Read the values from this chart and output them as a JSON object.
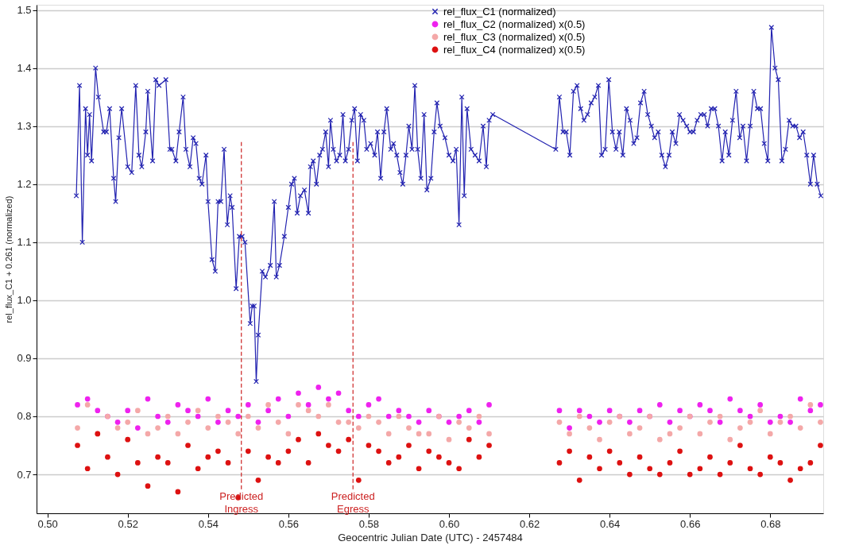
{
  "chart_data": {
    "type": "line",
    "xlabel": "Geocentric Julian Date (UTC) - 2457484",
    "ylabel": "rel_flux_C1 + 0.261 (normalized)",
    "xlim": [
      0.4973,
      0.6932
    ],
    "ylim": [
      0.633,
      1.509
    ],
    "xticks": [
      {
        "value": 0.5,
        "label": "0.50"
      },
      {
        "value": 0.52,
        "label": "0.52"
      },
      {
        "value": 0.54,
        "label": "0.54"
      },
      {
        "value": 0.56,
        "label": "0.56"
      },
      {
        "value": 0.58,
        "label": "0.58"
      },
      {
        "value": 0.6,
        "label": "0.60"
      },
      {
        "value": 0.62,
        "label": "0.62"
      },
      {
        "value": 0.64,
        "label": "0.64"
      },
      {
        "value": 0.66,
        "label": "0.66"
      },
      {
        "value": 0.68,
        "label": "0.68"
      }
    ],
    "yticks": [
      {
        "value": 0.7,
        "label": "0.7"
      },
      {
        "value": 0.8,
        "label": "0.8"
      },
      {
        "value": 0.9,
        "label": "0.9"
      },
      {
        "value": 1.0,
        "label": "1.0"
      },
      {
        "value": 1.1,
        "label": "1.1"
      },
      {
        "value": 1.2,
        "label": "1.2"
      },
      {
        "value": 1.3,
        "label": "1.3"
      },
      {
        "value": 1.4,
        "label": "1.4"
      },
      {
        "value": 1.5,
        "label": "1.5"
      }
    ],
    "grid": "y",
    "legend": "top right",
    "ref_lines": [
      {
        "axis": "x",
        "value": 0.5483,
        "label": "Predicted Ingress",
        "color": "#cc2222",
        "line_style": "dashed"
      },
      {
        "axis": "x",
        "value": 0.5761,
        "label": "Predicted Egress",
        "color": "#cc2222",
        "line_style": "dashed"
      }
    ],
    "series": [
      {
        "name": "rel_flux_C1 (normalized)",
        "marker": "cross",
        "color": "#2222b0",
        "x": [
          0.5072,
          0.508,
          0.5087,
          0.5095,
          0.51,
          0.5105,
          0.511,
          0.512,
          0.5127,
          0.514,
          0.5147,
          0.5155,
          0.5165,
          0.517,
          0.5178,
          0.5185,
          0.52,
          0.521,
          0.522,
          0.5228,
          0.5235,
          0.5245,
          0.525,
          0.5262,
          0.527,
          0.5278,
          0.5295,
          0.5305,
          0.531,
          0.532,
          0.5328,
          0.5338,
          0.5345,
          0.5355,
          0.5363,
          0.537,
          0.5378,
          0.5385,
          0.5395,
          0.54,
          0.541,
          0.5418,
          0.5425,
          0.5432,
          0.544,
          0.5448,
          0.5455,
          0.546,
          0.547,
          0.5478,
          0.5485,
          0.5492,
          0.5505,
          0.551,
          0.5515,
          0.552,
          0.5525,
          0.5535,
          0.5543,
          0.5555,
          0.5565,
          0.557,
          0.5578,
          0.559,
          0.56,
          0.5608,
          0.5615,
          0.5622,
          0.563,
          0.564,
          0.565,
          0.5655,
          0.5662,
          0.567,
          0.5678,
          0.5685,
          0.5693,
          0.57,
          0.5705,
          0.5712,
          0.572,
          0.5728,
          0.5736,
          0.5742,
          0.575,
          0.5758,
          0.5765,
          0.5772,
          0.578,
          0.5788,
          0.5795,
          0.5805,
          0.5815,
          0.5822,
          0.583,
          0.5838,
          0.5845,
          0.5855,
          0.5862,
          0.587,
          0.5878,
          0.5885,
          0.5893,
          0.59,
          0.5908,
          0.5915,
          0.5922,
          0.593,
          0.5938,
          0.5945,
          0.5955,
          0.5963,
          0.597,
          0.5978,
          0.599,
          0.6,
          0.601,
          0.6018,
          0.6025,
          0.6032,
          0.6038,
          0.6045,
          0.6055,
          0.6065,
          0.6075,
          0.6085,
          0.6093,
          0.61,
          0.6109,
          0.6266,
          0.6275,
          0.6284,
          0.6292,
          0.6301,
          0.631,
          0.6319,
          0.6328,
          0.6336,
          0.6345,
          0.6354,
          0.6363,
          0.6372,
          0.638,
          0.6389,
          0.6398,
          0.6407,
          0.6416,
          0.6424,
          0.6433,
          0.6442,
          0.6451,
          0.646,
          0.6468,
          0.6477,
          0.6486,
          0.6495,
          0.6504,
          0.6512,
          0.6521,
          0.653,
          0.6539,
          0.6548,
          0.6556,
          0.6565,
          0.6574,
          0.6583,
          0.6592,
          0.66,
          0.6609,
          0.6618,
          0.6627,
          0.6636,
          0.6644,
          0.6653,
          0.6662,
          0.6671,
          0.668,
          0.6688,
          0.6697,
          0.6706,
          0.6715,
          0.6724,
          0.6732,
          0.6741,
          0.675,
          0.6759,
          0.6768,
          0.6776,
          0.6785,
          0.6794,
          0.6803,
          0.6812,
          0.682,
          0.6829,
          0.6838,
          0.6847,
          0.6856,
          0.6864,
          0.6873,
          0.6882,
          0.6891,
          0.69,
          0.6908,
          0.6917,
          0.6926
        ],
        "values": [
          1.18,
          1.37,
          1.1,
          1.33,
          1.25,
          1.32,
          1.24,
          1.4,
          1.35,
          1.29,
          1.29,
          1.33,
          1.21,
          1.17,
          1.28,
          1.33,
          1.23,
          1.22,
          1.37,
          1.25,
          1.23,
          1.29,
          1.36,
          1.24,
          1.38,
          1.37,
          1.38,
          1.26,
          1.26,
          1.24,
          1.29,
          1.35,
          1.26,
          1.23,
          1.28,
          1.27,
          1.21,
          1.2,
          1.25,
          1.17,
          1.07,
          1.05,
          1.17,
          1.17,
          1.26,
          1.13,
          1.18,
          1.16,
          1.02,
          1.11,
          1.11,
          1.1,
          0.96,
          0.99,
          0.99,
          0.86,
          0.94,
          1.05,
          1.04,
          1.06,
          1.17,
          1.04,
          1.06,
          1.11,
          1.16,
          1.2,
          1.21,
          1.15,
          1.18,
          1.19,
          1.15,
          1.23,
          1.24,
          1.2,
          1.25,
          1.26,
          1.29,
          1.23,
          1.31,
          1.26,
          1.24,
          1.25,
          1.32,
          1.24,
          1.26,
          1.31,
          1.33,
          1.24,
          1.32,
          1.31,
          1.26,
          1.27,
          1.25,
          1.29,
          1.21,
          1.29,
          1.33,
          1.26,
          1.27,
          1.25,
          1.22,
          1.2,
          1.25,
          1.3,
          1.26,
          1.37,
          1.26,
          1.21,
          1.32,
          1.19,
          1.21,
          1.29,
          1.34,
          1.3,
          1.28,
          1.25,
          1.24,
          1.26,
          1.13,
          1.35,
          1.18,
          1.33,
          1.26,
          1.25,
          1.24,
          1.3,
          1.23,
          1.31,
          1.32,
          1.26,
          1.35,
          1.29,
          1.29,
          1.25,
          1.36,
          1.37,
          1.33,
          1.31,
          1.32,
          1.34,
          1.35,
          1.37,
          1.25,
          1.26,
          1.38,
          1.29,
          1.26,
          1.29,
          1.25,
          1.33,
          1.31,
          1.27,
          1.28,
          1.34,
          1.36,
          1.32,
          1.3,
          1.28,
          1.29,
          1.25,
          1.23,
          1.25,
          1.29,
          1.27,
          1.32,
          1.31,
          1.3,
          1.29,
          1.29,
          1.31,
          1.32,
          1.32,
          1.3,
          1.33,
          1.33,
          1.3,
          1.24,
          1.29,
          1.25,
          1.31,
          1.36,
          1.28,
          1.3,
          1.24,
          1.3,
          1.36,
          1.33,
          1.33,
          1.27,
          1.24,
          1.47,
          1.4,
          1.38,
          1.24,
          1.26,
          1.31,
          1.3,
          1.3,
          1.28,
          1.29,
          1.25,
          1.2,
          1.25,
          1.2,
          1.18
        ]
      },
      {
        "name": "rel_flux_C2 (normalized) x(0.5)",
        "type": "scatter",
        "marker": "circle",
        "color": "#ee22ee",
        "x": [
          0.5075,
          0.51,
          0.5125,
          0.515,
          0.5175,
          0.52,
          0.5225,
          0.525,
          0.5275,
          0.53,
          0.5325,
          0.535,
          0.5375,
          0.54,
          0.5425,
          0.545,
          0.5475,
          0.55,
          0.5525,
          0.555,
          0.5575,
          0.56,
          0.5625,
          0.565,
          0.5675,
          0.57,
          0.5725,
          0.575,
          0.5775,
          0.58,
          0.5825,
          0.585,
          0.5875,
          0.59,
          0.5925,
          0.595,
          0.5975,
          0.6,
          0.6025,
          0.605,
          0.6075,
          0.61,
          0.6275,
          0.63,
          0.6325,
          0.635,
          0.6375,
          0.64,
          0.6425,
          0.645,
          0.6475,
          0.65,
          0.6525,
          0.655,
          0.6575,
          0.66,
          0.6625,
          0.665,
          0.6675,
          0.67,
          0.6725,
          0.675,
          0.6775,
          0.68,
          0.6825,
          0.685,
          0.6875,
          0.69,
          0.6925
        ],
        "values": [
          0.82,
          0.83,
          0.81,
          0.8,
          0.79,
          0.81,
          0.78,
          0.83,
          0.8,
          0.79,
          0.82,
          0.81,
          0.8,
          0.83,
          0.79,
          0.81,
          0.8,
          0.82,
          0.79,
          0.81,
          0.83,
          0.8,
          0.84,
          0.82,
          0.85,
          0.83,
          0.84,
          0.81,
          0.8,
          0.82,
          0.83,
          0.8,
          0.81,
          0.8,
          0.79,
          0.81,
          0.8,
          0.79,
          0.8,
          0.81,
          0.79,
          0.82,
          0.81,
          0.78,
          0.81,
          0.8,
          0.79,
          0.81,
          0.8,
          0.79,
          0.81,
          0.8,
          0.82,
          0.79,
          0.81,
          0.8,
          0.82,
          0.81,
          0.79,
          0.83,
          0.81,
          0.8,
          0.82,
          0.79,
          0.8,
          0.79,
          0.83,
          0.81,
          0.82
        ]
      },
      {
        "name": "rel_flux_C3 (normalized) x(0.5)",
        "type": "scatter",
        "marker": "circle",
        "color": "#f4a8a8",
        "x": [
          0.5075,
          0.51,
          0.5125,
          0.515,
          0.5175,
          0.52,
          0.5225,
          0.525,
          0.5275,
          0.53,
          0.5325,
          0.535,
          0.5375,
          0.54,
          0.5425,
          0.545,
          0.5475,
          0.55,
          0.5525,
          0.555,
          0.5575,
          0.56,
          0.5625,
          0.565,
          0.5675,
          0.57,
          0.5725,
          0.575,
          0.5775,
          0.58,
          0.5825,
          0.585,
          0.5875,
          0.59,
          0.5925,
          0.595,
          0.5975,
          0.6,
          0.6025,
          0.605,
          0.6075,
          0.61,
          0.6275,
          0.63,
          0.6325,
          0.635,
          0.6375,
          0.64,
          0.6425,
          0.645,
          0.6475,
          0.65,
          0.6525,
          0.655,
          0.6575,
          0.66,
          0.6625,
          0.665,
          0.6675,
          0.67,
          0.6725,
          0.675,
          0.6775,
          0.68,
          0.6825,
          0.685,
          0.6875,
          0.69,
          0.6925
        ],
        "values": [
          0.78,
          0.82,
          0.77,
          0.8,
          0.78,
          0.79,
          0.81,
          0.77,
          0.78,
          0.8,
          0.77,
          0.79,
          0.81,
          0.78,
          0.8,
          0.79,
          0.77,
          0.8,
          0.78,
          0.82,
          0.79,
          0.77,
          0.82,
          0.81,
          0.8,
          0.82,
          0.79,
          0.79,
          0.78,
          0.8,
          0.79,
          0.77,
          0.8,
          0.78,
          0.77,
          0.77,
          0.8,
          0.76,
          0.79,
          0.78,
          0.8,
          0.77,
          0.79,
          0.77,
          0.8,
          0.78,
          0.76,
          0.79,
          0.8,
          0.77,
          0.78,
          0.8,
          0.76,
          0.77,
          0.78,
          0.8,
          0.77,
          0.79,
          0.8,
          0.76,
          0.78,
          0.79,
          0.81,
          0.77,
          0.79,
          0.8,
          0.78,
          0.82,
          0.79
        ]
      },
      {
        "name": "rel_flux_C4 (normalized) x(0.5)",
        "type": "scatter",
        "marker": "circle",
        "color": "#dd1111",
        "x": [
          0.5075,
          0.51,
          0.5125,
          0.515,
          0.5175,
          0.52,
          0.5225,
          0.525,
          0.5275,
          0.53,
          0.5325,
          0.535,
          0.5375,
          0.54,
          0.5425,
          0.545,
          0.5475,
          0.55,
          0.5525,
          0.555,
          0.5575,
          0.56,
          0.5625,
          0.565,
          0.5675,
          0.57,
          0.5725,
          0.575,
          0.5775,
          0.58,
          0.5825,
          0.585,
          0.5875,
          0.59,
          0.5925,
          0.595,
          0.5975,
          0.6,
          0.6025,
          0.605,
          0.6075,
          0.61,
          0.6275,
          0.63,
          0.6325,
          0.635,
          0.6375,
          0.64,
          0.6425,
          0.645,
          0.6475,
          0.65,
          0.6525,
          0.655,
          0.6575,
          0.66,
          0.6625,
          0.665,
          0.6675,
          0.67,
          0.6725,
          0.675,
          0.6775,
          0.68,
          0.6825,
          0.685,
          0.6875,
          0.69,
          0.6925
        ],
        "values": [
          0.75,
          0.71,
          0.77,
          0.73,
          0.7,
          0.76,
          0.72,
          0.68,
          0.73,
          0.72,
          0.67,
          0.75,
          0.71,
          0.73,
          0.74,
          0.72,
          0.66,
          0.74,
          0.69,
          0.73,
          0.72,
          0.74,
          0.76,
          0.72,
          0.77,
          0.75,
          0.74,
          0.76,
          0.69,
          0.75,
          0.74,
          0.72,
          0.73,
          0.75,
          0.71,
          0.74,
          0.73,
          0.72,
          0.71,
          0.76,
          0.73,
          0.75,
          0.72,
          0.74,
          0.69,
          0.73,
          0.71,
          0.74,
          0.72,
          0.7,
          0.73,
          0.71,
          0.7,
          0.72,
          0.74,
          0.7,
          0.71,
          0.73,
          0.7,
          0.72,
          0.75,
          0.71,
          0.7,
          0.73,
          0.72,
          0.69,
          0.71,
          0.72,
          0.75
        ]
      }
    ]
  }
}
